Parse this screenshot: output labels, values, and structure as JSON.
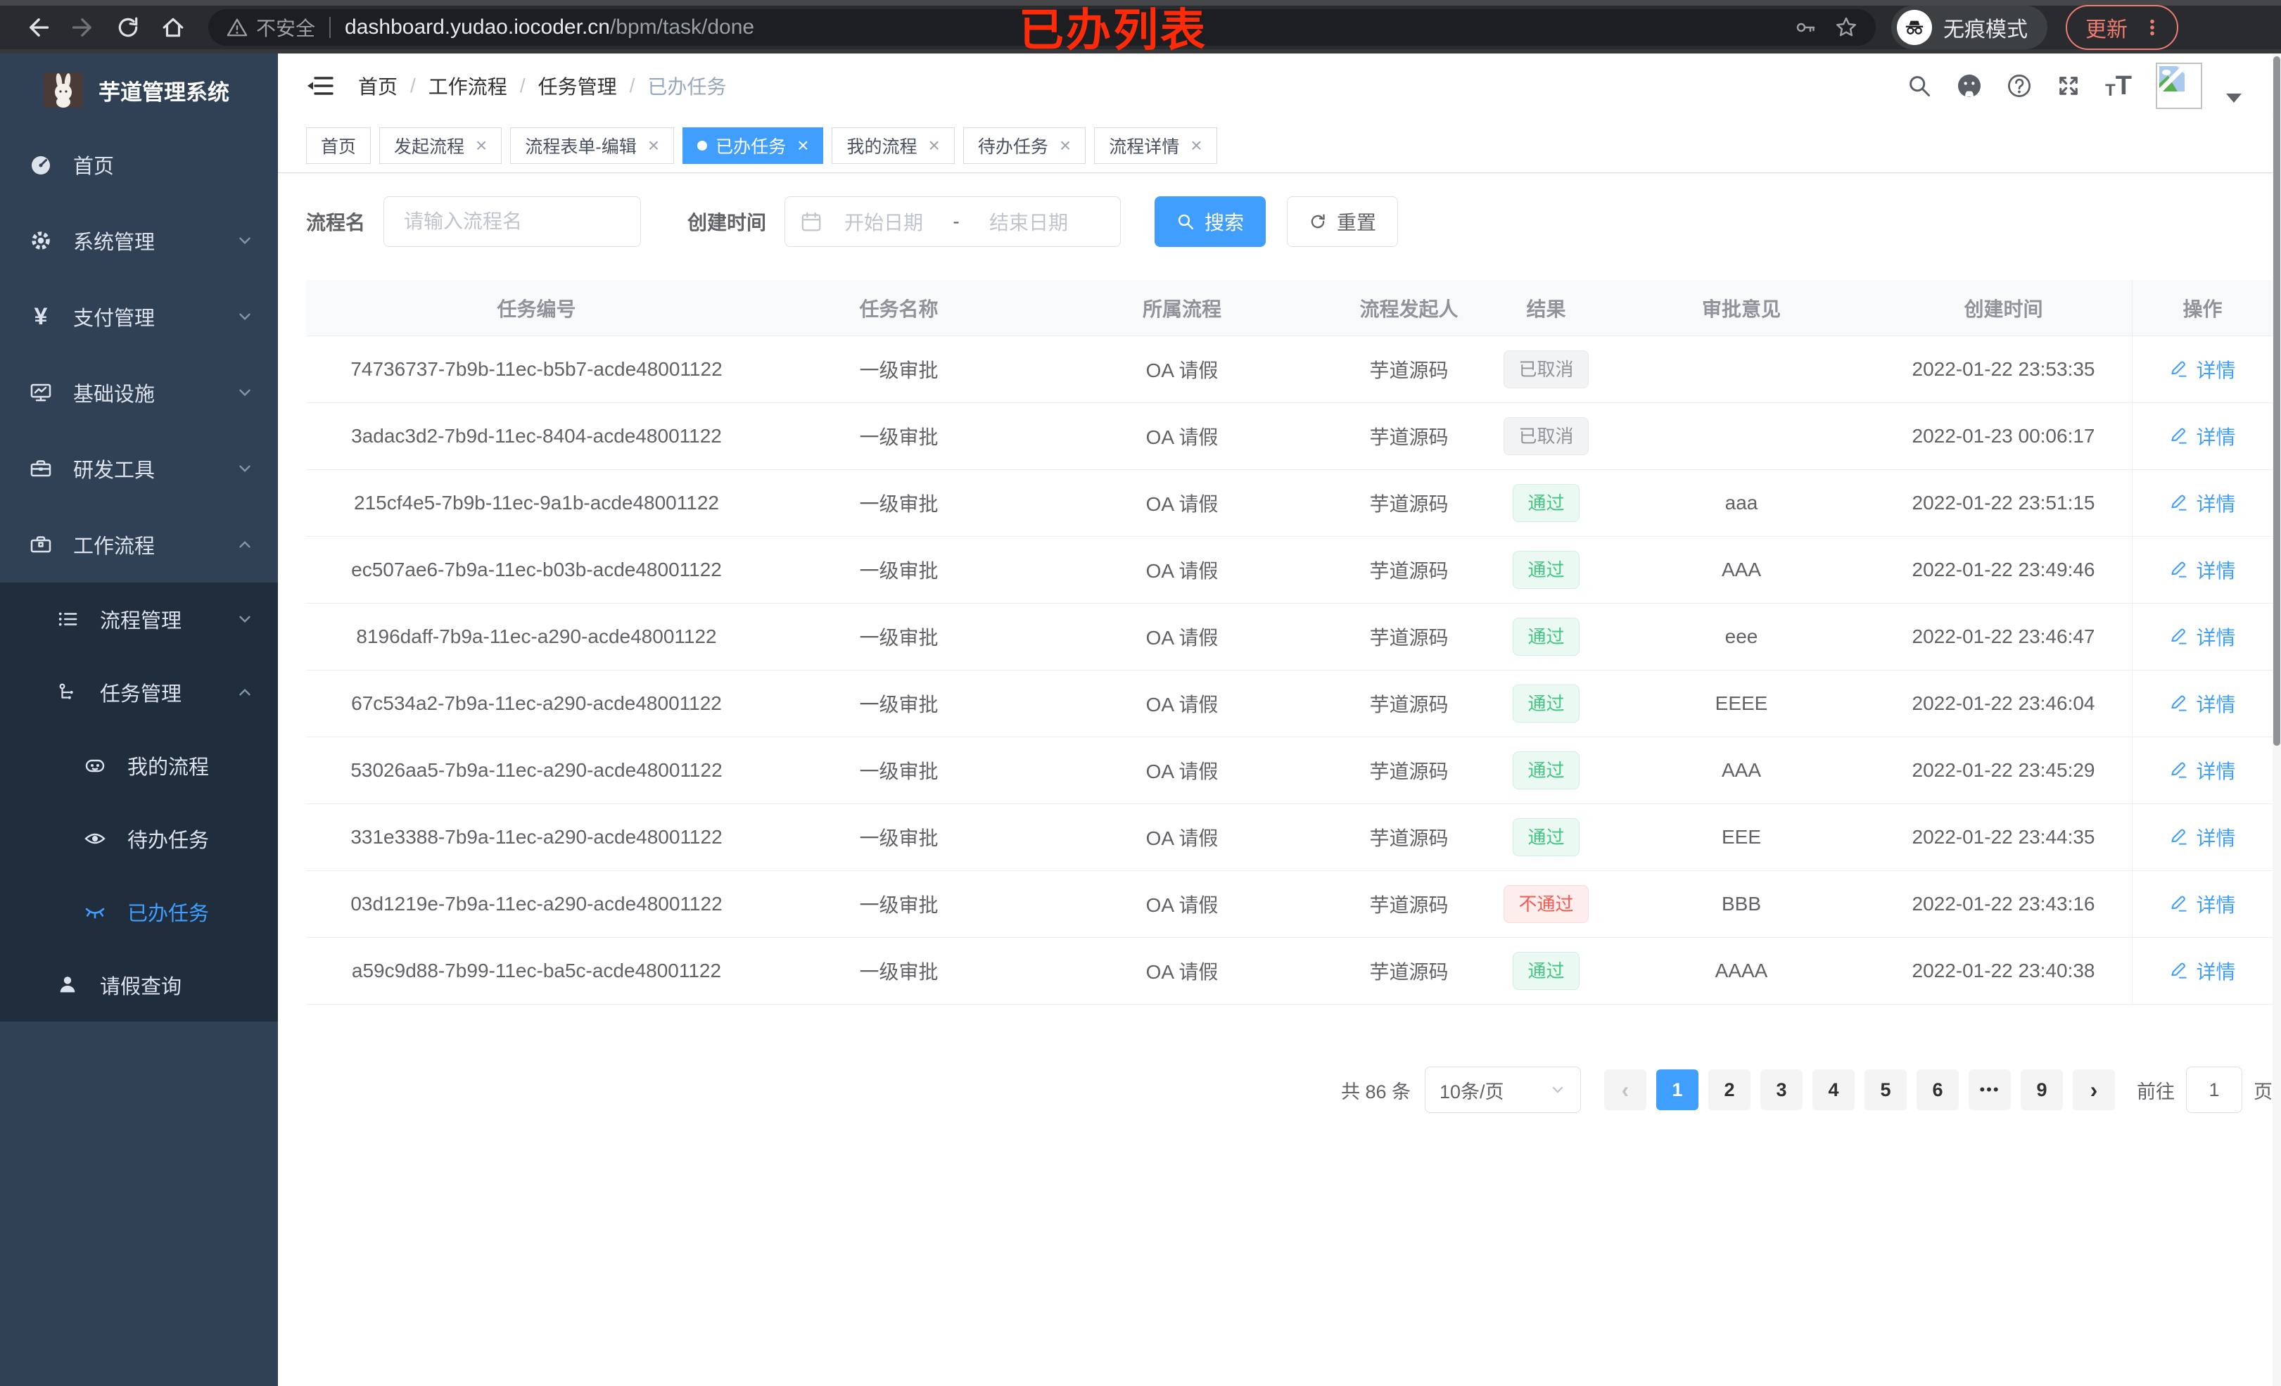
{
  "browser": {
    "security_label": "不安全",
    "url_host": "dashboard.yudao.iocoder.cn",
    "url_path": "/bpm/task/done",
    "incognito_label": "无痕模式",
    "update_label": "更新"
  },
  "overlay_title": "已办列表",
  "sidebar": {
    "app_title": "芋道管理系统",
    "items": [
      {
        "label": "首页"
      },
      {
        "label": "系统管理"
      },
      {
        "label": "支付管理"
      },
      {
        "label": "基础设施"
      },
      {
        "label": "研发工具"
      },
      {
        "label": "工作流程"
      },
      {
        "label": "流程管理"
      },
      {
        "label": "任务管理"
      },
      {
        "label": "我的流程"
      },
      {
        "label": "待办任务"
      },
      {
        "label": "已办任务"
      },
      {
        "label": "请假查询"
      }
    ]
  },
  "breadcrumb": [
    "首页",
    "工作流程",
    "任务管理",
    "已办任务"
  ],
  "tabs": [
    {
      "label": "首页",
      "closable": false,
      "active": false
    },
    {
      "label": "发起流程",
      "closable": true,
      "active": false
    },
    {
      "label": "流程表单-编辑",
      "closable": true,
      "active": false
    },
    {
      "label": "已办任务",
      "closable": true,
      "active": true
    },
    {
      "label": "我的流程",
      "closable": true,
      "active": false
    },
    {
      "label": "待办任务",
      "closable": true,
      "active": false
    },
    {
      "label": "流程详情",
      "closable": true,
      "active": false
    }
  ],
  "filters": {
    "name_label": "流程名",
    "name_placeholder": "请输入流程名",
    "time_label": "创建时间",
    "start_placeholder": "开始日期",
    "range_separator": "-",
    "end_placeholder": "结束日期",
    "search_label": "搜索",
    "reset_label": "重置"
  },
  "table": {
    "columns": [
      "任务编号",
      "任务名称",
      "所属流程",
      "流程发起人",
      "结果",
      "审批意见",
      "创建时间",
      "操作"
    ],
    "action_label": "详情",
    "rows": [
      {
        "id": "74736737-7b9b-11ec-b5b7-acde48001122",
        "name": "一级审批",
        "process": "OA 请假",
        "starter": "芋道源码",
        "result": "已取消",
        "result_type": "info",
        "comment": "",
        "time": "2022-01-22 23:53:35"
      },
      {
        "id": "3adac3d2-7b9d-11ec-8404-acde48001122",
        "name": "一级审批",
        "process": "OA 请假",
        "starter": "芋道源码",
        "result": "已取消",
        "result_type": "info",
        "comment": "",
        "time": "2022-01-23 00:06:17"
      },
      {
        "id": "215cf4e5-7b9b-11ec-9a1b-acde48001122",
        "name": "一级审批",
        "process": "OA 请假",
        "starter": "芋道源码",
        "result": "通过",
        "result_type": "success",
        "comment": "aaa",
        "time": "2022-01-22 23:51:15"
      },
      {
        "id": "ec507ae6-7b9a-11ec-b03b-acde48001122",
        "name": "一级审批",
        "process": "OA 请假",
        "starter": "芋道源码",
        "result": "通过",
        "result_type": "success",
        "comment": "AAA",
        "time": "2022-01-22 23:49:46"
      },
      {
        "id": "8196daff-7b9a-11ec-a290-acde48001122",
        "name": "一级审批",
        "process": "OA 请假",
        "starter": "芋道源码",
        "result": "通过",
        "result_type": "success",
        "comment": "eee",
        "time": "2022-01-22 23:46:47"
      },
      {
        "id": "67c534a2-7b9a-11ec-a290-acde48001122",
        "name": "一级审批",
        "process": "OA 请假",
        "starter": "芋道源码",
        "result": "通过",
        "result_type": "success",
        "comment": "EEEE",
        "time": "2022-01-22 23:46:04"
      },
      {
        "id": "53026aa5-7b9a-11ec-a290-acde48001122",
        "name": "一级审批",
        "process": "OA 请假",
        "starter": "芋道源码",
        "result": "通过",
        "result_type": "success",
        "comment": "AAA",
        "time": "2022-01-22 23:45:29"
      },
      {
        "id": "331e3388-7b9a-11ec-a290-acde48001122",
        "name": "一级审批",
        "process": "OA 请假",
        "starter": "芋道源码",
        "result": "通过",
        "result_type": "success",
        "comment": "EEE",
        "time": "2022-01-22 23:44:35"
      },
      {
        "id": "03d1219e-7b9a-11ec-a290-acde48001122",
        "name": "一级审批",
        "process": "OA 请假",
        "starter": "芋道源码",
        "result": "不通过",
        "result_type": "danger",
        "comment": "BBB",
        "time": "2022-01-22 23:43:16"
      },
      {
        "id": "a59c9d88-7b99-11ec-ba5c-acde48001122",
        "name": "一级审批",
        "process": "OA 请假",
        "starter": "芋道源码",
        "result": "通过",
        "result_type": "success",
        "comment": "AAAA",
        "time": "2022-01-22 23:40:38"
      }
    ]
  },
  "pagination": {
    "total_label": "共 86 条",
    "page_size": "10条/页",
    "pages": [
      "1",
      "2",
      "3",
      "4",
      "5",
      "6",
      "...",
      "9"
    ],
    "active_page": "1",
    "goto_label": "前往",
    "goto_value": "1",
    "page_unit": "页"
  }
}
